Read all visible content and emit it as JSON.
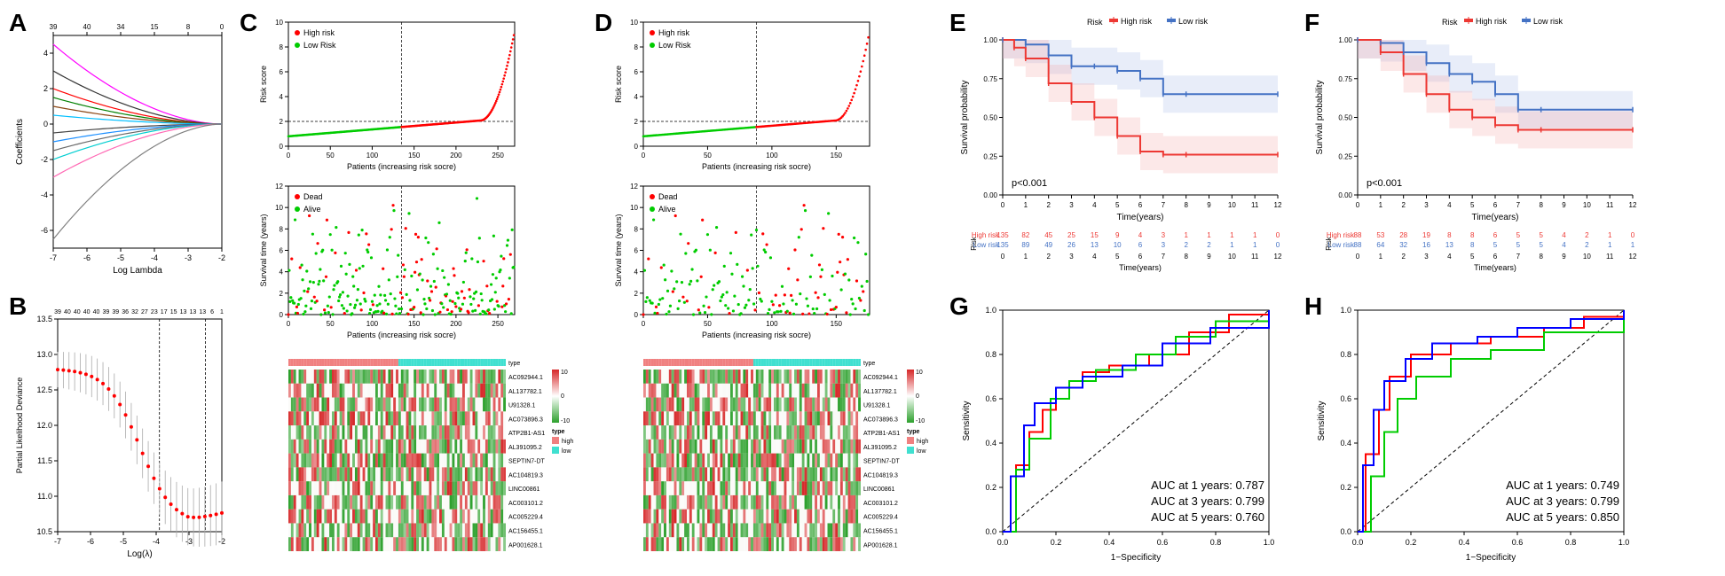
{
  "colors": {
    "high_risk": "#ff0000",
    "low_risk": "#00cc00",
    "km_high": "#ed3833",
    "km_low": "#4472c4",
    "km_high_ci": "#f5a3a3",
    "km_low_ci": "#a3b8e8",
    "roc_1yr": "#ff0000",
    "roc_3yr": "#00cc00",
    "roc_5yr": "#0000ff",
    "heatmap_high": "#d62728",
    "heatmap_low": "#2ca02c",
    "type_high": "#f08080",
    "type_low": "#40e0d0",
    "axis": "#000000",
    "grid": "#e0e0e0"
  },
  "panelA": {
    "label": "A",
    "title": "",
    "xlabel": "Log Lambda",
    "ylabel": "Coefficients",
    "xlim": [
      -7,
      -2
    ],
    "ylim": [
      -7,
      5
    ],
    "top_ticks": [
      39,
      40,
      34,
      15,
      8,
      0
    ],
    "top_tick_x": [
      -7,
      -6,
      -5,
      -4,
      -3,
      -2
    ],
    "coef_colors": [
      "#ff00ff",
      "#333333",
      "#ff0000",
      "#008000",
      "#8b4513",
      "#00bfff",
      "#444444",
      "#1e90ff",
      "#696969",
      "#00ced1",
      "#ff69b4",
      "#808080"
    ]
  },
  "panelB": {
    "label": "B",
    "xlabel": "Log(λ)",
    "ylabel": "Partial Likelihood Deviance",
    "xlim": [
      -7,
      -2
    ],
    "ylim": [
      10.5,
      13.5
    ],
    "top_ticks": [
      39,
      40,
      40,
      40,
      40,
      39,
      39,
      36,
      32,
      27,
      23,
      17,
      15,
      13,
      13,
      13,
      6,
      1
    ],
    "deviance_color": "#ff0000",
    "errorbar_color": "#aaaaaa",
    "vline1": -3.9,
    "vline2": -2.5
  },
  "panelC": {
    "label": "C",
    "risk": {
      "ylabel": "Risk score",
      "xlabel": "Patients (increasing risk socre)",
      "ylim": [
        0,
        10
      ],
      "n_patients": 270,
      "cutoff": 135,
      "legend_high": "High risk",
      "legend_low": "Low Risk"
    },
    "surv": {
      "ylabel": "Survival time (years)",
      "xlabel": "Patients (increasing risk socre)",
      "ylim": [
        0,
        12
      ],
      "legend_dead": "Dead",
      "legend_alive": "Alive"
    },
    "heatmap": {
      "genes": [
        "AC092944.1",
        "AL137782.1",
        "U91328.1",
        "AC073896.3",
        "ATP2B1-AS1",
        "AL391095.2",
        "SEPTIN7-DT",
        "AC104819.3",
        "LINC00861",
        "AC003101.2",
        "AC005229.4",
        "AC156455.1",
        "AP001628.1"
      ],
      "scale_min": -10,
      "scale_max": 10,
      "type_label": "type",
      "type_high": "high",
      "type_low": "low"
    }
  },
  "panelD": {
    "label": "D",
    "risk": {
      "ylabel": "Risk score",
      "xlabel": "Patients (increasing risk socre)",
      "ylim": [
        0,
        10
      ],
      "n_patients": 176,
      "cutoff": 88,
      "legend_high": "High risk",
      "legend_low": "Low Risk"
    },
    "surv": {
      "ylabel": "Survival time (years)",
      "xlabel": "Patients (increasing risk socre)",
      "ylim": [
        0,
        12
      ],
      "legend_dead": "Dead",
      "legend_alive": "Alive"
    },
    "heatmap": {
      "genes": [
        "AC092944.1",
        "AL137782.1",
        "U91328.1",
        "AC073896.3",
        "ATP2B1-AS1",
        "AL391095.2",
        "SEPTIN7-DT",
        "AC104819.3",
        "LINC00861",
        "AC003101.2",
        "AC005229.4",
        "AC156455.1",
        "AP001628.1"
      ],
      "scale_min": -10,
      "scale_max": 10
    }
  },
  "panelE": {
    "label": "E",
    "title": "Risk",
    "legend_high": "High risk",
    "legend_low": "Low risk",
    "xlabel": "Time(years)",
    "ylabel": "Survival probability",
    "xlim": [
      0,
      12
    ],
    "ylim": [
      0,
      1
    ],
    "pvalue": "p<0.001",
    "risk_table": {
      "label": "Risk",
      "high_row": "High risk",
      "low_row": "Low risk",
      "times": [
        0,
        1,
        2,
        3,
        4,
        5,
        6,
        7,
        8,
        9,
        10,
        11,
        12
      ],
      "high": [
        135,
        82,
        45,
        25,
        15,
        9,
        4,
        3,
        1,
        1,
        1,
        1,
        0
      ],
      "low": [
        135,
        89,
        49,
        26,
        13,
        10,
        6,
        3,
        2,
        2,
        1,
        1,
        0
      ]
    },
    "km_high": [
      [
        0,
        1.0
      ],
      [
        0.5,
        0.95
      ],
      [
        1,
        0.88
      ],
      [
        2,
        0.72
      ],
      [
        3,
        0.6
      ],
      [
        4,
        0.5
      ],
      [
        5,
        0.38
      ],
      [
        6,
        0.28
      ],
      [
        7,
        0.26
      ],
      [
        8,
        0.26
      ],
      [
        12,
        0.26
      ]
    ],
    "km_low": [
      [
        0,
        1.0
      ],
      [
        1,
        0.97
      ],
      [
        2,
        0.9
      ],
      [
        3,
        0.83
      ],
      [
        4,
        0.83
      ],
      [
        5,
        0.8
      ],
      [
        6,
        0.75
      ],
      [
        7,
        0.65
      ],
      [
        8,
        0.65
      ],
      [
        12,
        0.65
      ]
    ]
  },
  "panelF": {
    "label": "F",
    "title": "Risk",
    "legend_high": "High risk",
    "legend_low": "Low risk",
    "xlabel": "Time(years)",
    "ylabel": "Survival probability",
    "xlim": [
      0,
      12
    ],
    "ylim": [
      0,
      1
    ],
    "pvalue": "p<0.001",
    "risk_table": {
      "label": "Risk",
      "high_row": "High risk",
      "low_row": "Low risk",
      "times": [
        0,
        1,
        2,
        3,
        4,
        5,
        6,
        7,
        8,
        9,
        10,
        11,
        12
      ],
      "high": [
        88,
        53,
        28,
        19,
        8,
        8,
        6,
        5,
        5,
        4,
        2,
        1,
        0
      ],
      "low": [
        88,
        64,
        32,
        16,
        13,
        8,
        5,
        5,
        5,
        4,
        2,
        1,
        1
      ]
    },
    "km_high": [
      [
        0,
        1.0
      ],
      [
        1,
        0.92
      ],
      [
        2,
        0.78
      ],
      [
        3,
        0.65
      ],
      [
        4,
        0.55
      ],
      [
        5,
        0.5
      ],
      [
        6,
        0.45
      ],
      [
        7,
        0.42
      ],
      [
        8,
        0.42
      ],
      [
        12,
        0.42
      ]
    ],
    "km_low": [
      [
        0,
        1.0
      ],
      [
        1,
        0.98
      ],
      [
        2,
        0.92
      ],
      [
        3,
        0.85
      ],
      [
        4,
        0.78
      ],
      [
        5,
        0.73
      ],
      [
        6,
        0.65
      ],
      [
        7,
        0.55
      ],
      [
        8,
        0.55
      ],
      [
        12,
        0.55
      ]
    ]
  },
  "panelG": {
    "label": "G",
    "xlabel": "1−Specificity",
    "ylabel": "Sensitivity",
    "auc1_label": "AUC at 1 years: 0.787",
    "auc3_label": "AUC at 3 years: 0.799",
    "auc5_label": "AUC at 5 years: 0.760",
    "roc1": [
      [
        0,
        0
      ],
      [
        0.05,
        0.3
      ],
      [
        0.1,
        0.45
      ],
      [
        0.15,
        0.55
      ],
      [
        0.2,
        0.65
      ],
      [
        0.3,
        0.72
      ],
      [
        0.4,
        0.75
      ],
      [
        0.55,
        0.8
      ],
      [
        0.7,
        0.9
      ],
      [
        0.85,
        0.98
      ],
      [
        1,
        1
      ]
    ],
    "roc3": [
      [
        0,
        0
      ],
      [
        0.05,
        0.28
      ],
      [
        0.1,
        0.42
      ],
      [
        0.18,
        0.6
      ],
      [
        0.25,
        0.68
      ],
      [
        0.35,
        0.73
      ],
      [
        0.5,
        0.8
      ],
      [
        0.65,
        0.88
      ],
      [
        0.8,
        0.95
      ],
      [
        1,
        1
      ]
    ],
    "roc5": [
      [
        0,
        0
      ],
      [
        0.03,
        0.25
      ],
      [
        0.08,
        0.48
      ],
      [
        0.12,
        0.58
      ],
      [
        0.2,
        0.65
      ],
      [
        0.3,
        0.7
      ],
      [
        0.45,
        0.75
      ],
      [
        0.6,
        0.85
      ],
      [
        0.78,
        0.92
      ],
      [
        1,
        1
      ]
    ]
  },
  "panelH": {
    "label": "H",
    "xlabel": "1−Specificity",
    "ylabel": "Sensitivity",
    "auc1_label": "AUC at 1 years: 0.749",
    "auc3_label": "AUC at 3 years: 0.799",
    "auc5_label": "AUC at 5 years: 0.850",
    "roc1": [
      [
        0,
        0
      ],
      [
        0.03,
        0.35
      ],
      [
        0.08,
        0.55
      ],
      [
        0.12,
        0.7
      ],
      [
        0.2,
        0.8
      ],
      [
        0.35,
        0.85
      ],
      [
        0.5,
        0.88
      ],
      [
        0.7,
        0.92
      ],
      [
        0.85,
        0.97
      ],
      [
        1,
        1
      ]
    ],
    "roc3": [
      [
        0,
        0
      ],
      [
        0.05,
        0.25
      ],
      [
        0.1,
        0.45
      ],
      [
        0.15,
        0.6
      ],
      [
        0.22,
        0.7
      ],
      [
        0.35,
        0.78
      ],
      [
        0.5,
        0.82
      ],
      [
        0.7,
        0.9
      ],
      [
        1,
        1
      ]
    ],
    "roc5": [
      [
        0,
        0
      ],
      [
        0.02,
        0.3
      ],
      [
        0.06,
        0.55
      ],
      [
        0.1,
        0.68
      ],
      [
        0.18,
        0.78
      ],
      [
        0.28,
        0.85
      ],
      [
        0.45,
        0.88
      ],
      [
        0.6,
        0.92
      ],
      [
        0.8,
        0.96
      ],
      [
        1,
        1
      ]
    ]
  }
}
